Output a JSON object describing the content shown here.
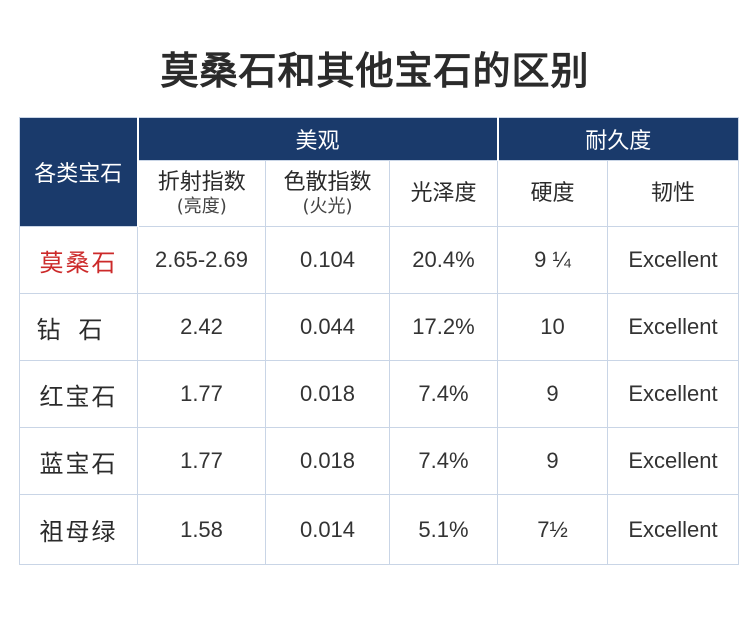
{
  "title": "莫桑石和其他宝石的区别",
  "header": {
    "gem_label": "各类宝石",
    "group_beauty": "美观",
    "group_durability": "耐久度",
    "columns": [
      {
        "label": "折射指数",
        "sub": "(亮度)"
      },
      {
        "label": "色散指数",
        "sub": "(火光)"
      },
      {
        "label": "光泽度",
        "sub": ""
      },
      {
        "label": "硬度",
        "sub": ""
      },
      {
        "label": "韧性",
        "sub": ""
      }
    ]
  },
  "rows": [
    {
      "name": "莫桑石",
      "refraction": "2.65-2.69",
      "dispersion": "0.104",
      "luster": "20.4%",
      "hardness": "9 ¼",
      "toughness": "Excellent"
    },
    {
      "name": "钻石",
      "refraction": "2.42",
      "dispersion": "0.044",
      "luster": "17.2%",
      "hardness": "10",
      "toughness": "Excellent"
    },
    {
      "name": "红宝石",
      "refraction": "1.77",
      "dispersion": "0.018",
      "luster": "7.4%",
      "hardness": "9",
      "toughness": "Excellent"
    },
    {
      "name": "蓝宝石",
      "refraction": "1.77",
      "dispersion": "0.018",
      "luster": "7.4%",
      "hardness": "9",
      "toughness": "Excellent"
    },
    {
      "name": "祖母绿",
      "refraction": "1.58",
      "dispersion": "0.014",
      "luster": "5.1%",
      "hardness": "7½",
      "toughness": "Excellent"
    }
  ]
}
